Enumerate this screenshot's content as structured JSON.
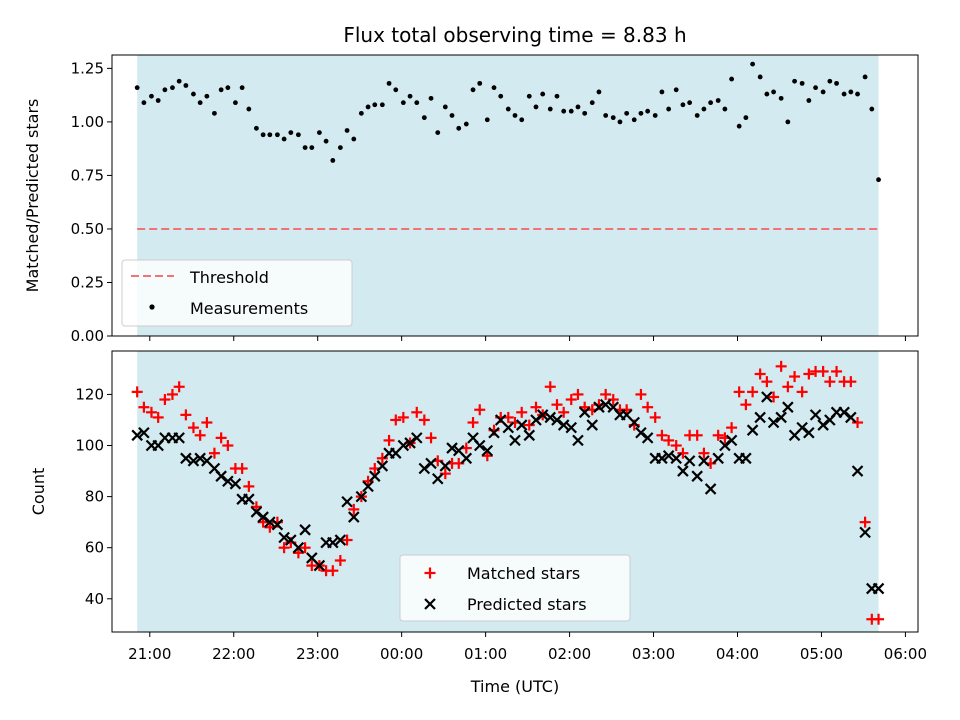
{
  "chart_data": [
    {
      "type": "scatter",
      "title": "Flux total observing time = 8.83 h",
      "xlabel": "",
      "ylabel": "Matched/Predicted stars",
      "ylim": [
        0,
        1.3125
      ],
      "yticks": [
        "0.00",
        "0.25",
        "0.50",
        "0.75",
        "1.00",
        "1.25"
      ],
      "ytick_values": [
        0,
        0.25,
        0.5,
        0.75,
        1.0,
        1.25
      ],
      "xlim": [
        20.55,
        30.15
      ],
      "shaded_span": [
        20.85,
        29.68
      ],
      "colors": {
        "shade": "#d3eaf0",
        "threshold": "#f07474",
        "points": "#000000"
      },
      "threshold": {
        "name": "Threshold",
        "value": 0.5
      },
      "legend": {
        "placement": "lower-left",
        "entries": [
          "Threshold",
          "Measurements"
        ]
      },
      "series": [
        {
          "name": "Measurements",
          "x": [
            20.85,
            20.93,
            21.02,
            21.1,
            21.18,
            21.27,
            21.35,
            21.43,
            21.52,
            21.6,
            21.68,
            21.77,
            21.85,
            21.93,
            22.02,
            22.1,
            22.18,
            22.27,
            22.35,
            22.43,
            22.52,
            22.6,
            22.68,
            22.77,
            22.85,
            22.93,
            23.02,
            23.1,
            23.18,
            23.27,
            23.35,
            23.43,
            23.52,
            23.6,
            23.68,
            23.77,
            23.85,
            23.93,
            24.02,
            24.1,
            24.18,
            24.27,
            24.35,
            24.43,
            24.52,
            24.6,
            24.68,
            24.77,
            24.85,
            24.93,
            25.02,
            25.1,
            25.18,
            25.27,
            25.35,
            25.43,
            25.52,
            25.6,
            25.68,
            25.77,
            25.85,
            25.93,
            26.02,
            26.1,
            26.18,
            26.27,
            26.35,
            26.43,
            26.52,
            26.6,
            26.68,
            26.77,
            26.85,
            26.93,
            27.02,
            27.1,
            27.18,
            27.27,
            27.35,
            27.43,
            27.52,
            27.6,
            27.68,
            27.77,
            27.85,
            27.93,
            28.02,
            28.1,
            28.18,
            28.27,
            28.35,
            28.43,
            28.52,
            28.6,
            28.68,
            28.77,
            28.85,
            28.93,
            29.02,
            29.1,
            29.18,
            29.27,
            29.35,
            29.43,
            29.52,
            29.6,
            29.68
          ],
          "values": [
            1.16,
            1.09,
            1.12,
            1.1,
            1.15,
            1.16,
            1.19,
            1.17,
            1.13,
            1.09,
            1.12,
            1.04,
            1.15,
            1.16,
            1.09,
            1.16,
            1.06,
            0.97,
            0.94,
            0.94,
            0.94,
            0.92,
            0.95,
            0.94,
            0.88,
            0.88,
            0.95,
            0.91,
            0.82,
            0.88,
            0.96,
            0.92,
            1.04,
            1.07,
            1.08,
            1.08,
            1.18,
            1.15,
            1.09,
            1.12,
            1.09,
            1.02,
            1.11,
            0.95,
            1.07,
            1.03,
            0.97,
            0.99,
            1.15,
            1.18,
            1.01,
            1.16,
            1.12,
            1.06,
            1.03,
            1.01,
            1.12,
            1.07,
            1.13,
            1.06,
            1.12,
            1.05,
            1.05,
            1.07,
            1.04,
            1.09,
            1.14,
            1.03,
            1.02,
            1.0,
            1.04,
            1.01,
            1.04,
            1.05,
            1.03,
            1.14,
            1.06,
            1.15,
            1.08,
            1.09,
            1.03,
            1.06,
            1.09,
            1.1,
            1.06,
            1.2,
            0.98,
            1.02,
            1.27,
            1.21,
            1.13,
            1.14,
            1.11,
            1.0,
            1.19,
            1.18,
            1.1,
            1.16,
            1.14,
            1.19,
            1.18,
            1.13,
            1.14,
            1.13,
            1.21,
            1.06,
            0.73
          ]
        }
      ]
    },
    {
      "type": "scatter",
      "title": "",
      "xlabel": "Time (UTC)",
      "ylabel": "Count",
      "ylim": [
        27,
        137
      ],
      "yticks": [
        "40",
        "60",
        "80",
        "100",
        "120"
      ],
      "ytick_values": [
        40,
        60,
        80,
        100,
        120
      ],
      "xlim": [
        20.55,
        30.15
      ],
      "xticks": [
        "21:00",
        "22:00",
        "23:00",
        "00:00",
        "01:00",
        "02:00",
        "03:00",
        "04:00",
        "05:00",
        "06:00"
      ],
      "xtick_values": [
        21,
        22,
        23,
        24,
        25,
        26,
        27,
        28,
        29,
        30
      ],
      "shaded_span": [
        20.85,
        29.68
      ],
      "colors": {
        "shade": "#d3eaf0",
        "matched": "#ff0000",
        "predicted": "#000000"
      },
      "legend": {
        "placement": "lower-center",
        "entries": [
          "Matched stars",
          "Predicted stars"
        ]
      },
      "series": [
        {
          "name": "Matched stars",
          "x": [
            20.85,
            20.93,
            21.02,
            21.1,
            21.18,
            21.27,
            21.35,
            21.43,
            21.52,
            21.6,
            21.68,
            21.77,
            21.85,
            21.93,
            22.02,
            22.1,
            22.18,
            22.27,
            22.35,
            22.43,
            22.52,
            22.6,
            22.68,
            22.77,
            22.85,
            22.93,
            23.02,
            23.1,
            23.18,
            23.27,
            23.35,
            23.43,
            23.52,
            23.6,
            23.68,
            23.77,
            23.85,
            23.93,
            24.02,
            24.1,
            24.18,
            24.27,
            24.35,
            24.43,
            24.52,
            24.6,
            24.68,
            24.77,
            24.85,
            24.93,
            25.02,
            25.1,
            25.18,
            25.27,
            25.35,
            25.43,
            25.52,
            25.6,
            25.68,
            25.77,
            25.85,
            25.93,
            26.02,
            26.1,
            26.18,
            26.27,
            26.35,
            26.43,
            26.52,
            26.6,
            26.68,
            26.77,
            26.85,
            26.93,
            27.02,
            27.1,
            27.18,
            27.27,
            27.35,
            27.43,
            27.52,
            27.6,
            27.68,
            27.77,
            27.85,
            27.93,
            28.02,
            28.1,
            28.18,
            28.27,
            28.35,
            28.43,
            28.52,
            28.6,
            28.68,
            28.77,
            28.85,
            28.93,
            29.02,
            29.1,
            29.18,
            29.27,
            29.35,
            29.43,
            29.52,
            29.6,
            29.68
          ],
          "values": [
            121,
            115,
            113,
            111,
            118,
            120,
            123,
            112,
            107,
            104,
            109,
            97,
            103,
            100,
            91,
            91,
            84,
            76,
            70,
            68,
            70,
            60,
            62,
            58,
            60,
            53,
            53,
            51,
            51,
            55,
            63,
            75,
            80,
            86,
            91,
            95,
            102,
            110,
            111,
            101,
            113,
            110,
            103,
            94,
            89,
            93,
            93,
            99,
            109,
            114,
            96,
            106,
            111,
            111,
            109,
            113,
            108,
            115,
            112,
            123,
            116,
            113,
            118,
            120,
            115,
            114,
            116,
            120,
            118,
            114,
            114,
            108,
            120,
            115,
            111,
            104,
            102,
            100,
            97,
            104,
            104,
            97,
            93,
            104,
            103,
            107,
            121,
            116,
            121,
            128,
            125,
            119,
            131,
            123,
            127,
            121,
            128,
            129,
            129,
            125,
            129,
            125,
            125,
            109,
            70,
            32,
            32
          ]
        },
        {
          "name": "Predicted stars",
          "x": [
            20.85,
            20.93,
            21.02,
            21.1,
            21.18,
            21.27,
            21.35,
            21.43,
            21.52,
            21.6,
            21.68,
            21.77,
            21.85,
            21.93,
            22.02,
            22.1,
            22.18,
            22.27,
            22.35,
            22.43,
            22.52,
            22.6,
            22.68,
            22.77,
            22.85,
            22.93,
            23.02,
            23.1,
            23.18,
            23.27,
            23.35,
            23.43,
            23.52,
            23.6,
            23.68,
            23.77,
            23.85,
            23.93,
            24.02,
            24.1,
            24.18,
            24.27,
            24.35,
            24.43,
            24.52,
            24.6,
            24.68,
            24.77,
            24.85,
            24.93,
            25.02,
            25.1,
            25.18,
            25.27,
            25.35,
            25.43,
            25.52,
            25.6,
            25.68,
            25.77,
            25.85,
            25.93,
            26.02,
            26.1,
            26.18,
            26.27,
            26.35,
            26.43,
            26.52,
            26.6,
            26.68,
            26.77,
            26.85,
            26.93,
            27.02,
            27.1,
            27.18,
            27.27,
            27.35,
            27.43,
            27.52,
            27.6,
            27.68,
            27.77,
            27.85,
            27.93,
            28.02,
            28.1,
            28.18,
            28.27,
            28.35,
            28.43,
            28.52,
            28.6,
            28.68,
            28.77,
            28.85,
            28.93,
            29.02,
            29.1,
            29.18,
            29.27,
            29.35,
            29.43,
            29.52,
            29.6,
            29.68
          ],
          "values": [
            104,
            105,
            100,
            100,
            103,
            103,
            103,
            95,
            94,
            95,
            94,
            91,
            88,
            86,
            85,
            79,
            79,
            74,
            72,
            70,
            69,
            64,
            63,
            60,
            67,
            56,
            53,
            62,
            62,
            63,
            78,
            72,
            80,
            84,
            88,
            92,
            97,
            97,
            100,
            101,
            103,
            91,
            93,
            87,
            92,
            99,
            98,
            95,
            103,
            100,
            98,
            105,
            110,
            107,
            102,
            108,
            104,
            110,
            112,
            111,
            110,
            108,
            107,
            102,
            113,
            108,
            115,
            116,
            115,
            112,
            112,
            109,
            105,
            103,
            95,
            95,
            96,
            95,
            90,
            94,
            88,
            94,
            83,
            95,
            100,
            102,
            95,
            95,
            106,
            111,
            119,
            109,
            111,
            115,
            104,
            107,
            105,
            112,
            108,
            110,
            113,
            113,
            111,
            90,
            66,
            44,
            44
          ]
        }
      ]
    }
  ]
}
